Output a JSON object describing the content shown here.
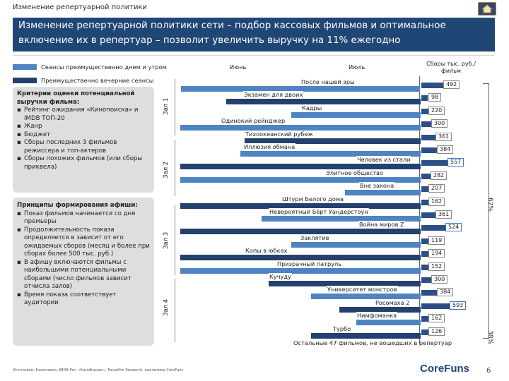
{
  "top_title": "Изменение репертуарной политики",
  "banner_title": "Изменение репертуарной политики сети – подбор кассовых фильмов и оптимальное включение их в репертуар – позволит увеличить выручку на 11% ежегодно",
  "legend": [
    {
      "label": "Сеансы преимущественно днем и утром",
      "color": "#4f84c2"
    },
    {
      "label": "Преимущественно вечерние сеансы",
      "color": "#24406c"
    }
  ],
  "headers": {
    "june": "Июнь",
    "july": "Июль",
    "gross": "Сборы тыс. руб./фильм"
  },
  "criteria": {
    "title": "Критерии оценки потенциальной выручки фильма:",
    "items": [
      "Рейтинг ожидания «Кинопоиска» и IMDB ТОП-20",
      "Жанр",
      "Бюджет",
      "Сборы последних 3 фильмов режиссера и топ-актеров",
      "Сборы похожих фильмов (или сборы приквела)"
    ]
  },
  "principles": {
    "title": "Принципы формирования афиши:",
    "items": [
      "Показ фильмов начинается со дня премьеры",
      "Продолжительность показа определяется в зависит от его ожидаемых сборов (месяц и более при сборах более 500 тыс. руб.)",
      "В афишу включаются фильмы с наибольшими потенциальными сборами (число фильмов зависит отчисла залов)",
      "Время показа соответствует аудитории"
    ]
  },
  "halls": [
    "Зал 1",
    "Зал 2",
    "Зал 3",
    "Зал 4"
  ],
  "films": [
    {
      "title": "После нашей эры",
      "gross": 492,
      "highlight": false
    },
    {
      "title": "Экзамен для двоих",
      "gross": 98,
      "highlight": false
    },
    {
      "title": "Кадры",
      "gross": 220,
      "highlight": false
    },
    {
      "title": "Одинокий рейнджер",
      "gross": 300,
      "highlight": false
    },
    {
      "title": "Тихоокеанский рубеж",
      "gross": 361,
      "highlight": false
    },
    {
      "title": "Иллюзия обмана",
      "gross": 384,
      "highlight": false
    },
    {
      "title": "Человек из стали",
      "gross": 557,
      "highlight": true
    },
    {
      "title": "Элитное общество",
      "gross": 282,
      "highlight": false
    },
    {
      "title": "Вне закона",
      "gross": 207,
      "highlight": false
    },
    {
      "title": "Штурм Белого дома",
      "gross": 162,
      "highlight": false
    },
    {
      "title": "Невероятный Бёрт Уандерстоун",
      "gross": 361,
      "highlight": false
    },
    {
      "title": "Война миров Z",
      "gross": 524,
      "highlight": true
    },
    {
      "title": "Заклятие",
      "gross": 119,
      "highlight": false
    },
    {
      "title": "Копы в юбках",
      "gross": 194,
      "highlight": false
    },
    {
      "title": "Призрачный патруль",
      "gross": 152,
      "highlight": false
    },
    {
      "title": "Кучуду",
      "gross": 300,
      "highlight": false
    },
    {
      "title": "Университет монстров",
      "gross": 384,
      "highlight": false
    },
    {
      "title": "Росомаха 2",
      "gross": 593,
      "highlight": true
    },
    {
      "title": "Нимфоманка",
      "gross": 162,
      "highlight": false
    },
    {
      "title": "Турбо",
      "gross": 126,
      "highlight": false
    }
  ],
  "remaining": "Остальные 47 фильмов, не вошедших в репертуар",
  "share_top": "62%",
  "share_bottom": "38%",
  "source": "Источники: Кинопоиск, IMDB Pro, «КиноБизнес», Nevafilm Research, аналитика CoreFuns",
  "brand": "CoreFuns",
  "page": "6",
  "colors": {
    "banner": "#1f4675",
    "bar_light": "#4f84c2",
    "bar_dark": "#24406c",
    "gross_bar": "#2d4f86"
  }
}
